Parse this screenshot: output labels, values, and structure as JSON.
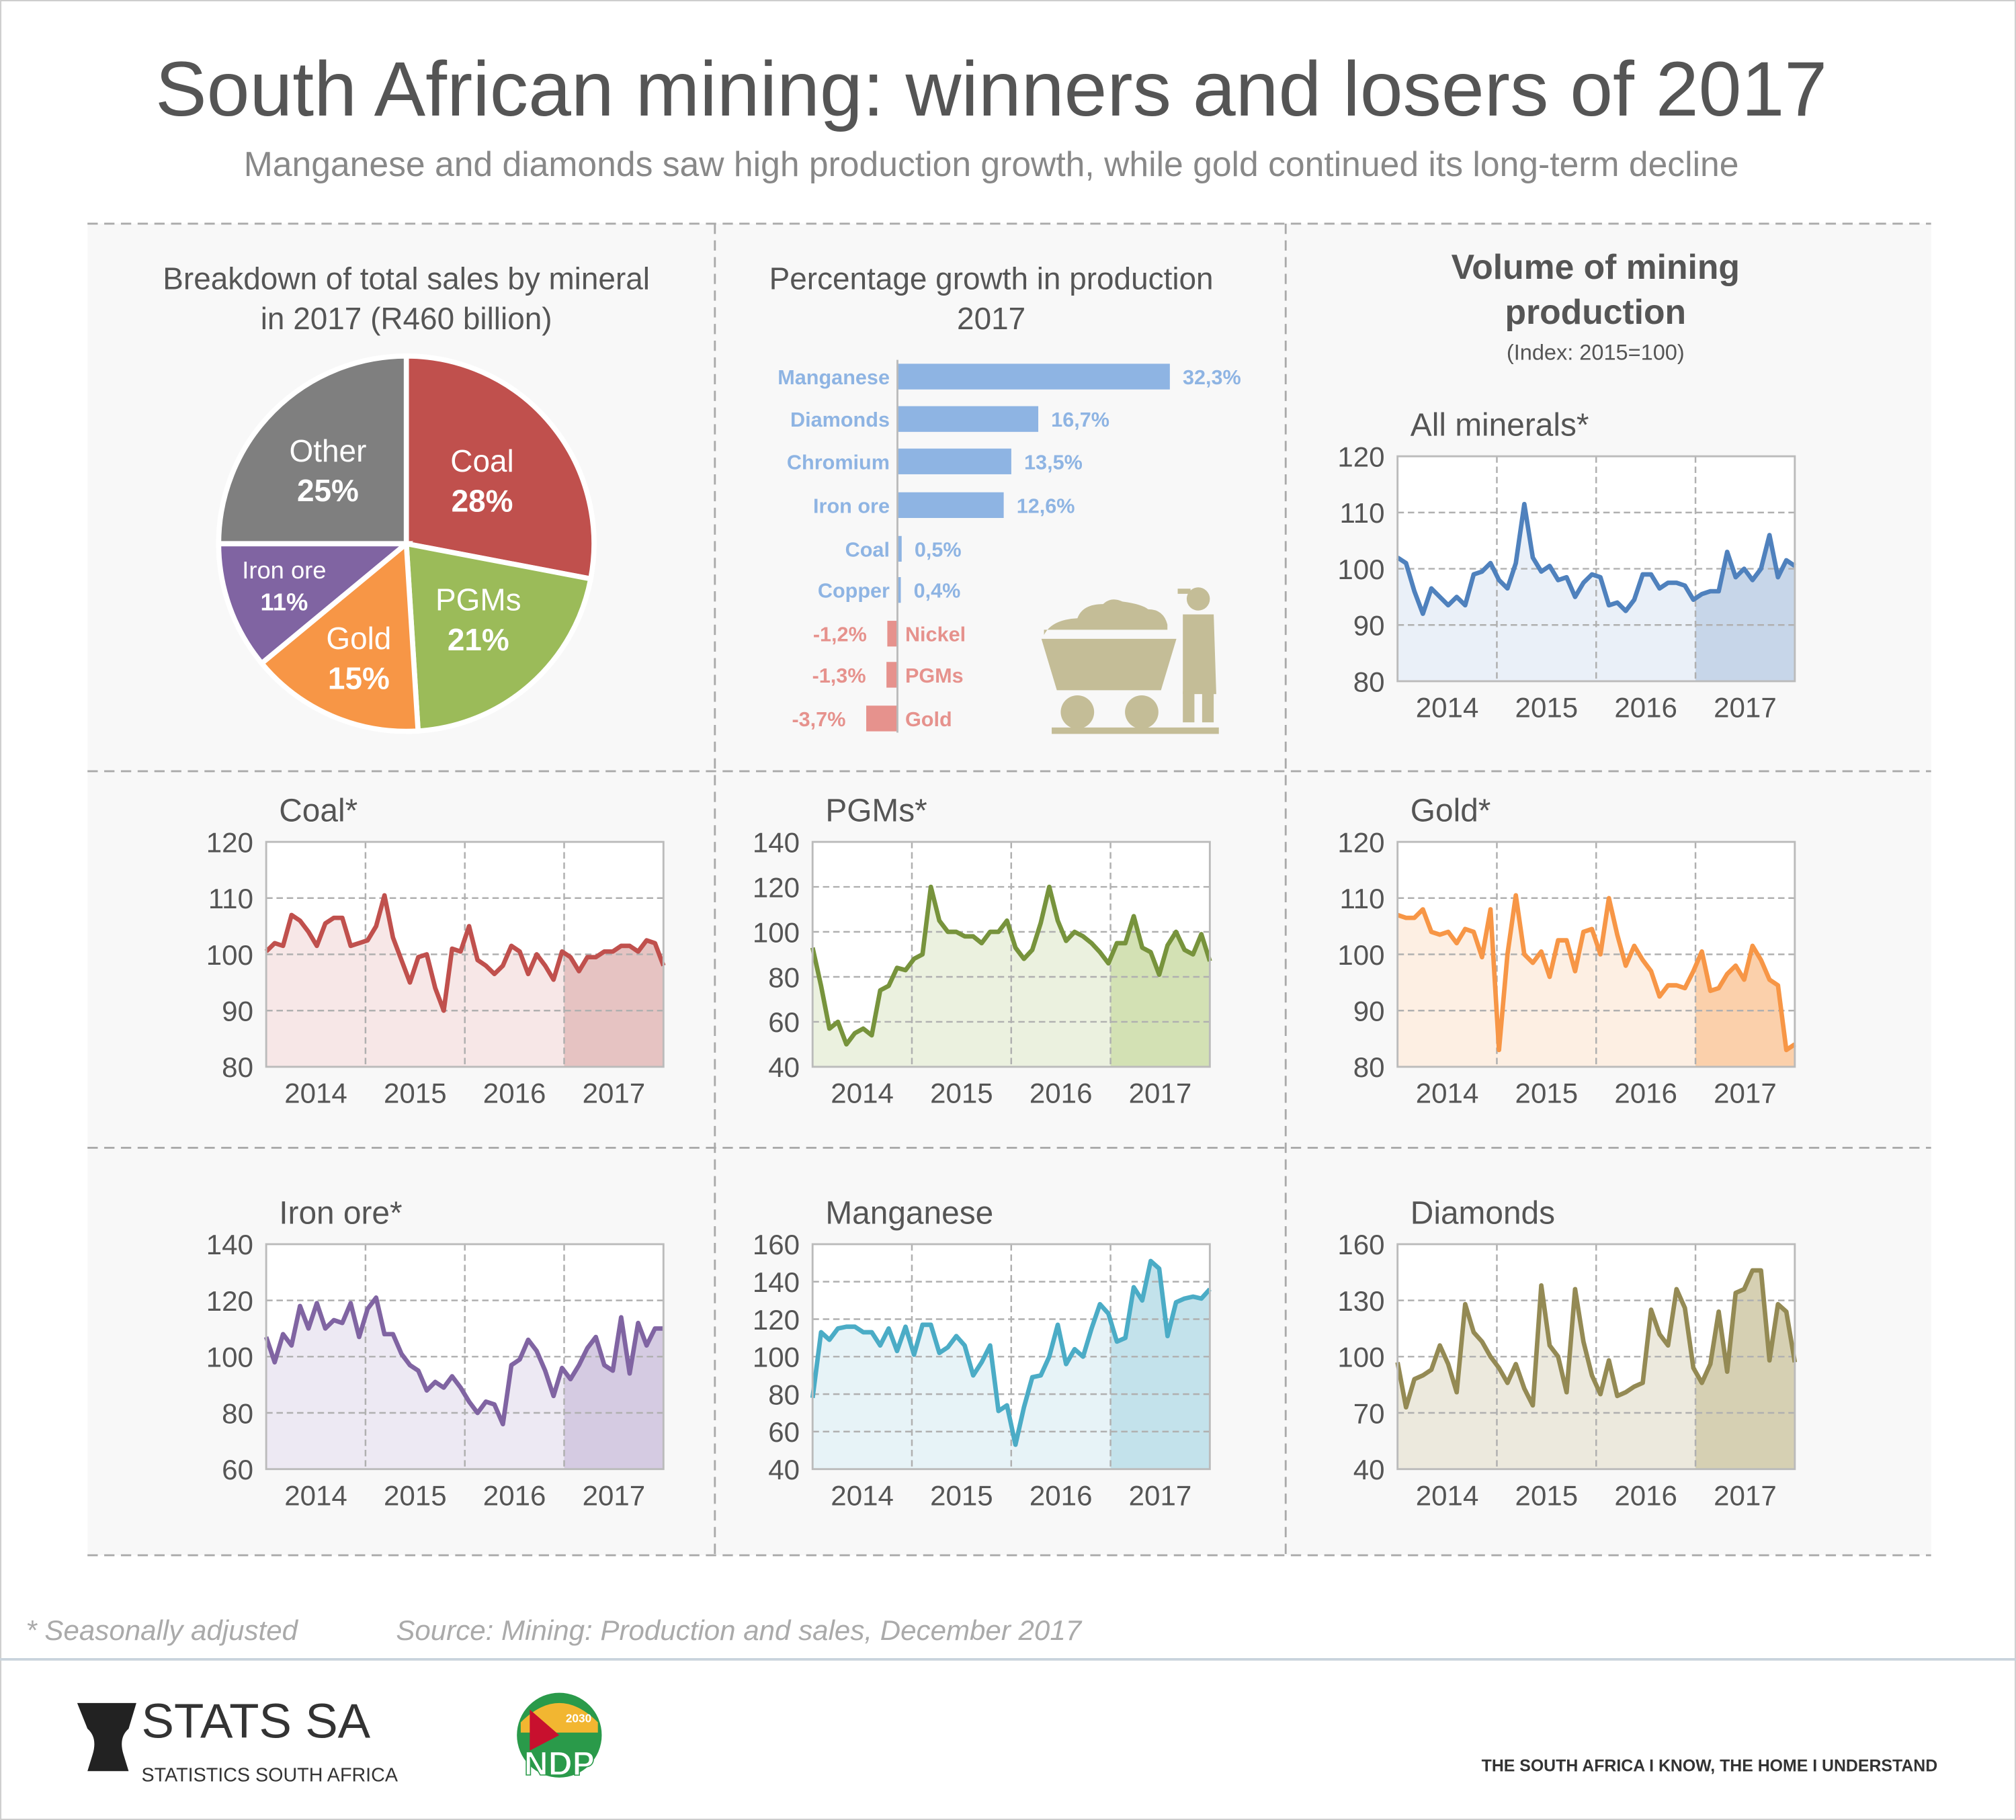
{
  "header": {
    "title": "South African mining: winners and losers of 2017",
    "subtitle": "Manganese and diamonds saw high production growth, while gold continued its long-term decline"
  },
  "chart_data": [
    {
      "type": "pie",
      "title_line1": "Breakdown of total sales by mineral",
      "title_line2": "in 2017 (R460 billion)",
      "slices": [
        {
          "label": "Coal",
          "pct_label": "28%",
          "value": 28,
          "color": "#c0504d"
        },
        {
          "label": "PGMs",
          "pct_label": "21%",
          "value": 21,
          "color": "#9bbb59"
        },
        {
          "label": "Gold",
          "pct_label": "15%",
          "value": 15,
          "color": "#f79646"
        },
        {
          "label": "Iron ore",
          "pct_label": "11%",
          "value": 11,
          "color": "#8064a2"
        },
        {
          "label": "Other",
          "pct_label": "25%",
          "value": 25,
          "color": "#7f7f7f"
        }
      ]
    },
    {
      "type": "bar",
      "title_line1": "Percentage growth in production",
      "title_line2": "2017",
      "categories": [
        "Manganese",
        "Diamonds",
        "Chromium",
        "Iron ore",
        "Coal",
        "Copper",
        "Nickel",
        "PGMs",
        "Gold"
      ],
      "values": [
        32.3,
        16.7,
        13.5,
        12.6,
        0.5,
        0.4,
        -1.2,
        -1.3,
        -3.7
      ],
      "value_labels": [
        "32,3%",
        "16,7%",
        "13,5%",
        "12,6%",
        "0,5%",
        "0,4%",
        "-1,2%",
        "-1,3%",
        "-3,7%"
      ],
      "positive_color": "#8eb4e3",
      "negative_color": "#e6928d"
    },
    {
      "type": "line",
      "section_title_line1": "Volume of mining",
      "section_title_line2": "production",
      "section_note": "(Index: 2015=100)",
      "title": "All minerals*",
      "ylim": [
        80,
        120
      ],
      "yticks": [
        "80",
        "90",
        "100",
        "110",
        "120"
      ],
      "xticks": [
        "2014",
        "2015",
        "2016",
        "2017"
      ],
      "color": "#4f81bd",
      "fill": "#eaf0f8",
      "fill_2017": "#c7d6e9",
      "values": [
        102,
        101,
        96,
        92,
        96.5,
        95,
        93.5,
        95,
        93.5,
        99,
        99.5,
        101,
        98,
        96.5,
        101,
        111.5,
        102,
        99.5,
        100.5,
        98,
        98.5,
        95,
        97.5,
        99,
        98.5,
        93.5,
        94,
        92.5,
        94.5,
        99,
        99,
        96.5,
        97.5,
        97.5,
        97,
        94.5,
        95.5,
        96,
        96,
        103,
        98.5,
        100,
        98,
        100,
        106,
        98.5,
        101.5,
        100.5
      ]
    },
    {
      "type": "line",
      "title": "Coal*",
      "ylim": [
        80,
        120
      ],
      "yticks": [
        "80",
        "90",
        "100",
        "110",
        "120"
      ],
      "xticks": [
        "2014",
        "2015",
        "2016",
        "2017"
      ],
      "color": "#c0504d",
      "fill": "#f7e7e7",
      "fill_2017": "#e6c3c2",
      "values": [
        100.5,
        102,
        101.5,
        107,
        106,
        104,
        101.5,
        105.5,
        106.5,
        106.5,
        101.5,
        102,
        102.5,
        105,
        110.5,
        103,
        99,
        95,
        99.5,
        100,
        94,
        90,
        101,
        100.5,
        105,
        99,
        98,
        96.5,
        98,
        101.5,
        100.5,
        96.5,
        100,
        98,
        95.5,
        100.5,
        99.5,
        97,
        99.5,
        99.5,
        100.5,
        100.5,
        101.5,
        101.5,
        100.5,
        102.5,
        102,
        98
      ]
    },
    {
      "type": "line",
      "title": "PGMs*",
      "ylim": [
        40,
        140
      ],
      "yticks": [
        "40",
        "60",
        "80",
        "100",
        "120",
        "140"
      ],
      "xticks": [
        "2014",
        "2015",
        "2016",
        "2017"
      ],
      "color": "#77933c",
      "fill": "#ebf1df",
      "fill_2017": "#d3e1b4",
      "values": [
        93,
        76,
        57,
        60,
        50,
        55,
        57,
        54,
        74,
        76,
        84,
        83,
        88,
        90,
        120,
        105,
        100,
        100,
        98,
        98,
        95,
        100,
        100,
        105,
        93,
        88,
        92,
        104,
        120,
        105,
        96,
        100,
        98,
        95,
        91,
        86,
        95,
        95,
        107,
        93,
        91,
        81,
        94,
        100,
        92,
        90,
        99,
        87
      ]
    },
    {
      "type": "line",
      "title": "Gold*",
      "ylim": [
        80,
        120
      ],
      "yticks": [
        "80",
        "90",
        "100",
        "110",
        "120"
      ],
      "xticks": [
        "2014",
        "2015",
        "2016",
        "2017"
      ],
      "color": "#f79646",
      "fill": "#fdefe3",
      "fill_2017": "#fbd0ab",
      "values": [
        107,
        106.5,
        106.5,
        108,
        104,
        103.5,
        104,
        102,
        104.5,
        104,
        99.5,
        108,
        83,
        100,
        110.5,
        100,
        98.5,
        100.5,
        96,
        102.5,
        102.5,
        97,
        104,
        104.5,
        100,
        110,
        103.5,
        98,
        101.5,
        99,
        97,
        92.5,
        94.5,
        94.5,
        94,
        97,
        100.5,
        93.5,
        94,
        96.5,
        98,
        95.5,
        101.5,
        99,
        95.5,
        94.5,
        83,
        84
      ]
    },
    {
      "type": "line",
      "title": "Iron ore*",
      "ylim": [
        60,
        140
      ],
      "yticks": [
        "60",
        "80",
        "100",
        "120",
        "140"
      ],
      "xticks": [
        "2014",
        "2015",
        "2016",
        "2017"
      ],
      "color": "#8064a2",
      "fill": "#ede9f3",
      "fill_2017": "#d5cbe2",
      "values": [
        107,
        98,
        108,
        104,
        118,
        110,
        119,
        110,
        113,
        112,
        119,
        107,
        117,
        121,
        108,
        108,
        101,
        97,
        95,
        88,
        91,
        89,
        93,
        89,
        84,
        80,
        84,
        83,
        76,
        97,
        99,
        106,
        102,
        95,
        86,
        96,
        92,
        97,
        103,
        107,
        97,
        95,
        114,
        94,
        112,
        104,
        110,
        110
      ]
    },
    {
      "type": "line",
      "title": "Manganese",
      "ylim": [
        40,
        160
      ],
      "yticks": [
        "40",
        "60",
        "80",
        "100",
        "120",
        "140",
        "160"
      ],
      "xticks": [
        "2014",
        "2015",
        "2016",
        "2017"
      ],
      "color": "#4bacc6",
      "fill": "#e7f3f7",
      "fill_2017": "#c3e2eb",
      "values": [
        78,
        113,
        109,
        115,
        116,
        116,
        113,
        113,
        106,
        115,
        103,
        116,
        101,
        117,
        117,
        102,
        105,
        111,
        106,
        90,
        97,
        106,
        71,
        74,
        53,
        73,
        89,
        90,
        100,
        117,
        96,
        104,
        100,
        115,
        128,
        123,
        108,
        110,
        137,
        130,
        151,
        147,
        111,
        129,
        131,
        132,
        131,
        136
      ]
    },
    {
      "type": "line",
      "title": "Diamonds",
      "ylim": [
        40,
        160
      ],
      "yticks": [
        "40",
        "70",
        "100",
        "130",
        "160"
      ],
      "xticks": [
        "2014",
        "2015",
        "2016",
        "2017"
      ],
      "color": "#948a54",
      "fill": "#ece9dd",
      "fill_2017": "#d6d0b3",
      "values": [
        97,
        73,
        88,
        90,
        93,
        106,
        96,
        81,
        128,
        113,
        108,
        100,
        94,
        86,
        96,
        83,
        74,
        138,
        106,
        100,
        81,
        136,
        108,
        90,
        80,
        98,
        79,
        81,
        84,
        86,
        125,
        112,
        106,
        136,
        126,
        94,
        86,
        96,
        124,
        92,
        134,
        136,
        146,
        146,
        98,
        128,
        124,
        97
      ]
    }
  ],
  "footer": {
    "note": "* Seasonally adjusted",
    "source": "Source: Mining: Production and sales, December 2017",
    "logo_name": "STATS SA",
    "logo_sub": "STATISTICS SOUTH AFRICA",
    "ndp_label": "NDP",
    "ndp_year": "2030",
    "tagline": "THE SOUTH AFRICA I KNOW, THE HOME I UNDERSTAND"
  }
}
